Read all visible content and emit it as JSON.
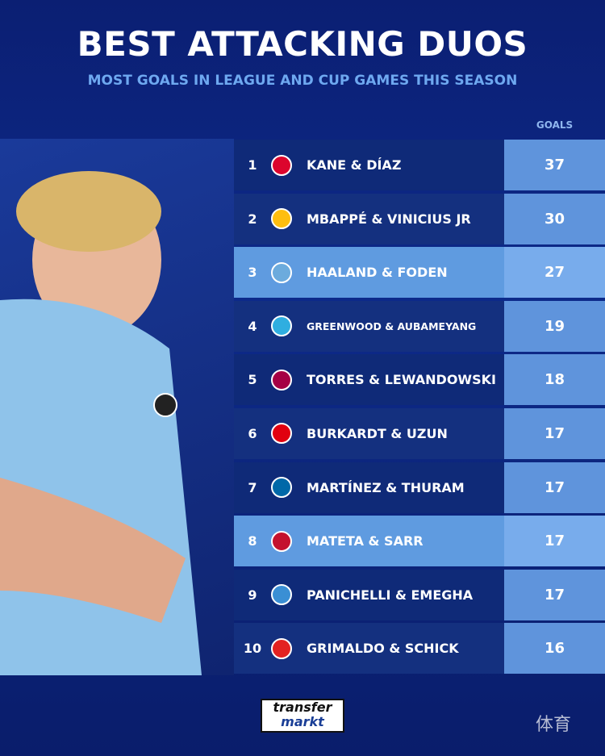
{
  "header": {
    "title": "BEST ATTACKING DUOS",
    "subtitle": "MOST GOALS IN LEAGUE AND CUP GAMES THIS SEASON"
  },
  "table": {
    "column_header": "GOALS",
    "rows": [
      {
        "rank": 1,
        "duo": "KANE & DÍAZ",
        "goals": 37,
        "crest": "#dc052d",
        "highlight": false
      },
      {
        "rank": 2,
        "duo": "MBAPPÉ & VINICIUS JR",
        "goals": 30,
        "crest": "#febe10",
        "highlight": false
      },
      {
        "rank": 3,
        "duo": "HAALAND & FODEN",
        "goals": 27,
        "crest": "#6cabdd",
        "highlight": true
      },
      {
        "rank": 4,
        "duo": "GREENWOOD & AUBAMEYANG",
        "goals": 19,
        "crest": "#2faee0",
        "highlight": false
      },
      {
        "rank": 5,
        "duo": "TORRES & LEWANDOWSKI",
        "goals": 18,
        "crest": "#a50044",
        "highlight": false
      },
      {
        "rank": 6,
        "duo": "BURKARDT & UZUN",
        "goals": 17,
        "crest": "#e1000f",
        "highlight": false
      },
      {
        "rank": 7,
        "duo": "MARTÍNEZ & THURAM",
        "goals": 17,
        "crest": "#0068a8",
        "highlight": false
      },
      {
        "rank": 8,
        "duo": "MATETA & SARR",
        "goals": 17,
        "crest": "#c4122e",
        "highlight": true
      },
      {
        "rank": 9,
        "duo": "PANICHELLI & EMEGHA",
        "goals": 17,
        "crest": "#3a8fd4",
        "highlight": false
      },
      {
        "rank": 10,
        "duo": "GRIMALDO & SCHICK",
        "goals": 16,
        "crest": "#e32221",
        "highlight": false
      }
    ]
  },
  "footer": {
    "logo_top": "transfer",
    "logo_bottom": "markt",
    "watermark": "体育"
  }
}
